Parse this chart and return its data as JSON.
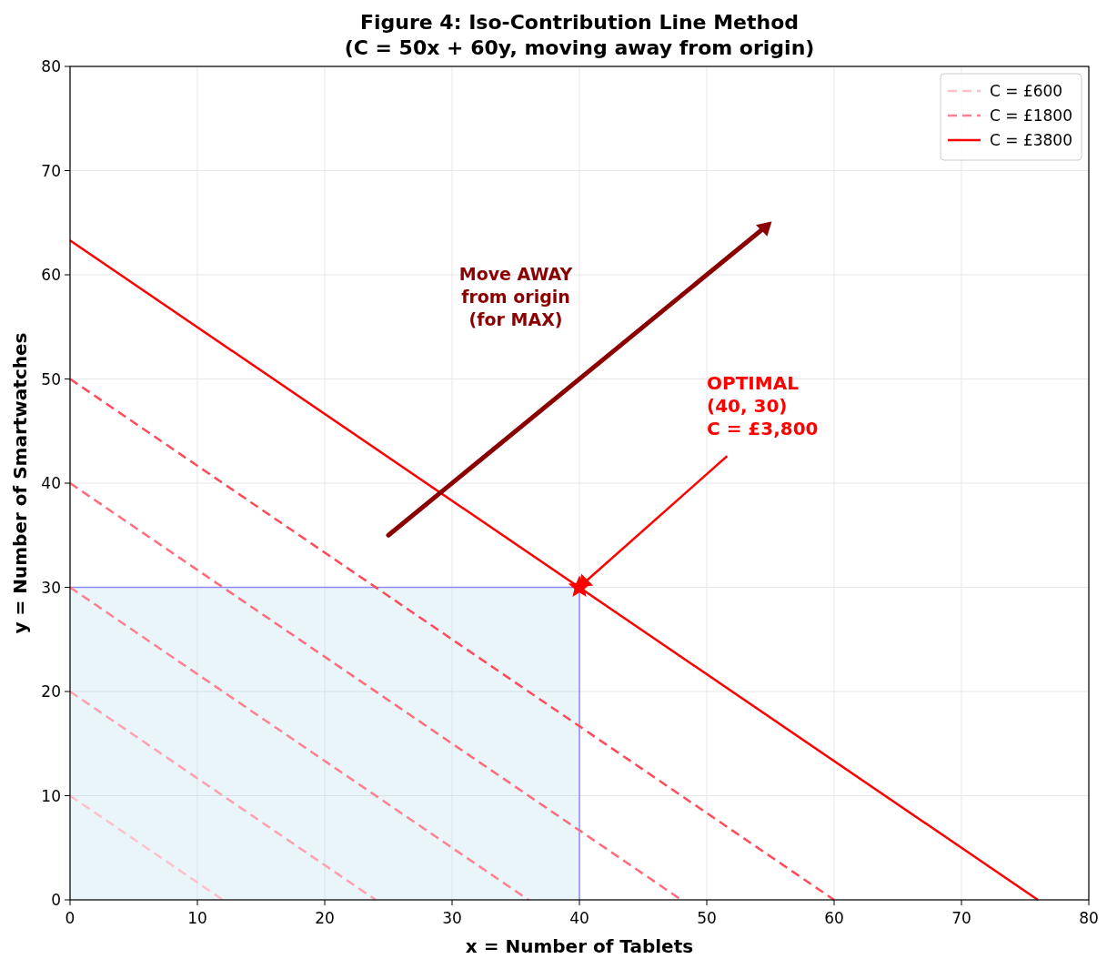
{
  "chart_data": {
    "type": "line",
    "title": "Figure 4: Iso-Contribution Line Method\n(C = 50x + 60y, moving away from origin)",
    "xlabel": "x = Number of Tablets",
    "ylabel": "y = Number of Smartwatches",
    "xlim": [
      0,
      80
    ],
    "ylim": [
      0,
      80
    ],
    "xticks": [
      0,
      10,
      20,
      30,
      40,
      50,
      60,
      70,
      80
    ],
    "yticks": [
      0,
      10,
      20,
      30,
      40,
      50,
      60,
      70,
      80
    ],
    "grid": true,
    "legend": "top right",
    "series": [
      {
        "type": "area",
        "color": "#add8e6",
        "x": [
          0,
          40,
          40
        ],
        "values": [
          30,
          30,
          0
        ]
      },
      {
        "name": "C = £600",
        "color": "#ffc0cb",
        "line_style": "dashed",
        "x": [
          0,
          12
        ],
        "values": [
          10,
          0
        ]
      },
      {
        "color": "#ffa0b0",
        "line_style": "dashed",
        "x": [
          0,
          24
        ],
        "values": [
          20,
          0
        ]
      },
      {
        "name": "C = £1800",
        "color": "#ff8090",
        "line_style": "dashed",
        "x": [
          0,
          36
        ],
        "values": [
          30,
          0
        ]
      },
      {
        "color": "#ff6b7a",
        "line_style": "dashed",
        "x": [
          0,
          48
        ],
        "values": [
          40,
          0
        ]
      },
      {
        "color": "#ff4a5a",
        "line_style": "dashed",
        "x": [
          0,
          60
        ],
        "values": [
          50,
          0
        ]
      },
      {
        "name": "C = £3800",
        "color": "#ff0000",
        "line_style": "solid",
        "x": [
          0,
          76
        ],
        "values": [
          63.3,
          0
        ]
      },
      {
        "type": "scatter",
        "marker": "star",
        "color": "#ff0000",
        "x": [
          40
        ],
        "values": [
          30
        ]
      }
    ],
    "annotations": [
      "Move AWAY\nfrom origin\n(for MAX)",
      {
        "text": "OPTIMAL\n(40, 30)\nC = £3,800",
        "x": 40,
        "y": 30
      }
    ]
  }
}
